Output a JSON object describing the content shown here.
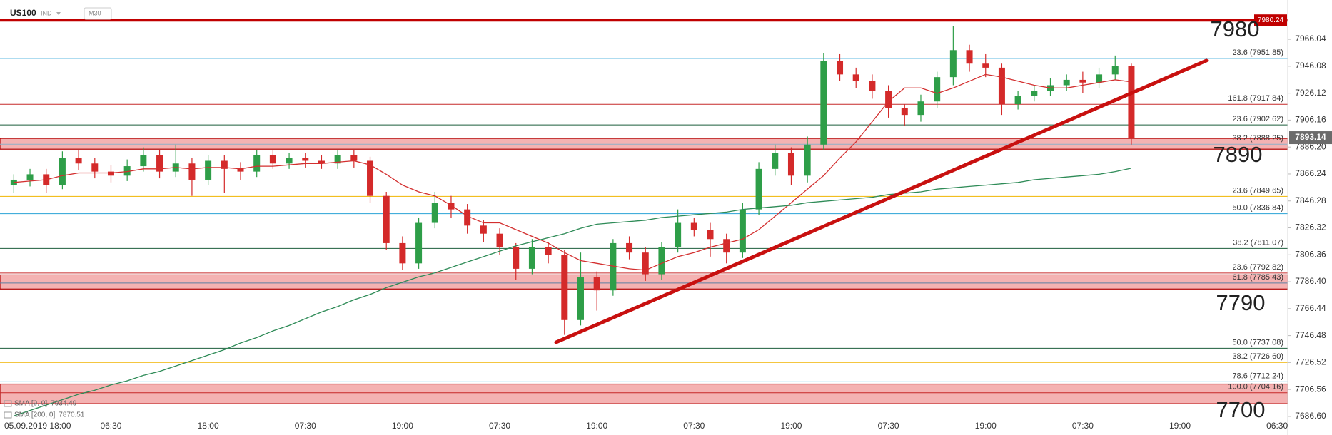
{
  "chart_data": {
    "type": "candlestick",
    "title": "US100",
    "market": "IND",
    "timeframe": "M30",
    "up_color": "#2e9e48",
    "down_color": "#d42a2a",
    "categories": [
      "05.09.2019 18:00",
      null,
      null,
      null,
      null,
      null,
      "06:30",
      null,
      null,
      null,
      null,
      null,
      "18:00",
      null,
      null,
      null,
      null,
      null,
      "07:30",
      null,
      null,
      null,
      null,
      null,
      "19:00",
      null,
      null,
      null,
      null,
      null,
      "07:30",
      null,
      null,
      null,
      null,
      null,
      "19:00",
      null,
      null,
      null,
      null,
      null,
      "07:30",
      null,
      null,
      null,
      null,
      null,
      "19:00",
      null,
      null,
      null,
      null,
      null,
      "07:30",
      null,
      null,
      null,
      null,
      null,
      "19:00",
      null,
      null,
      null,
      null,
      null,
      "07:30",
      null,
      null,
      null,
      null,
      null,
      "19:00",
      null,
      null,
      null,
      null,
      null,
      "06:30"
    ],
    "ohlc": {
      "open": [
        7858,
        7862,
        7866,
        7858,
        7878,
        7874,
        7868,
        7865,
        7872,
        7880,
        7868,
        7874,
        7862,
        7876,
        7870,
        7868,
        7880,
        7874,
        7878,
        7876,
        7874,
        7880,
        7876,
        7850,
        7815,
        7800,
        7830,
        7845,
        7840,
        7828,
        7822,
        7812,
        7796,
        7812,
        7806,
        7758,
        7790,
        7780,
        7815,
        7808,
        7792,
        7812,
        7830,
        7825,
        7818,
        7808,
        7840,
        7870,
        7882,
        7865,
        7888,
        7950,
        7940,
        7935,
        7928,
        7915,
        7910,
        7920,
        7938,
        7958,
        7948,
        7945,
        7918,
        7924,
        7928,
        7932,
        7936,
        7934,
        7940,
        7946,
        null,
        null,
        null,
        null,
        null,
        null,
        null,
        null,
        null
      ],
      "high": [
        7866,
        7870,
        7870,
        7883,
        7884,
        7878,
        7873,
        7877,
        7886,
        7884,
        7888,
        7878,
        7880,
        7880,
        7875,
        7884,
        7884,
        7882,
        7882,
        7880,
        7884,
        7884,
        7879,
        7853,
        7820,
        7834,
        7853,
        7850,
        7844,
        7832,
        7826,
        7815,
        7818,
        7816,
        7810,
        7808,
        7794,
        7818,
        7820,
        7812,
        7816,
        7840,
        7834,
        7830,
        7822,
        7845,
        7875,
        7888,
        7886,
        7894,
        7956,
        7955,
        7945,
        7940,
        7932,
        7918,
        7925,
        7942,
        7976,
        7962,
        7955,
        7948,
        7928,
        7932,
        7937,
        7940,
        7942,
        7945,
        7954,
        7948,
        null,
        null,
        null,
        null,
        null,
        null,
        null,
        null,
        null
      ],
      "low": [
        7852,
        7857,
        7852,
        7855,
        7869,
        7863,
        7860,
        7861,
        7868,
        7863,
        7864,
        7850,
        7858,
        7852,
        7862,
        7864,
        7870,
        7870,
        7871,
        7870,
        7870,
        7871,
        7845,
        7810,
        7795,
        7796,
        7826,
        7834,
        7822,
        7816,
        7806,
        7788,
        7792,
        7800,
        7747,
        7754,
        7765,
        7776,
        7803,
        7787,
        7788,
        7808,
        7820,
        7805,
        7800,
        7804,
        7836,
        7865,
        7858,
        7860,
        7884,
        7935,
        7930,
        7922,
        7908,
        7902,
        7905,
        7915,
        7932,
        7942,
        7938,
        7910,
        7914,
        7920,
        7924,
        7928,
        7926,
        7930,
        7936,
        7888,
        null,
        null,
        null,
        null,
        null,
        null,
        null,
        null,
        null
      ],
      "close": [
        7862,
        7866,
        7858,
        7878,
        7874,
        7868,
        7865,
        7872,
        7880,
        7868,
        7874,
        7862,
        7876,
        7870,
        7868,
        7880,
        7874,
        7878,
        7876,
        7874,
        7880,
        7876,
        7850,
        7815,
        7800,
        7830,
        7845,
        7840,
        7828,
        7822,
        7812,
        7796,
        7812,
        7806,
        7758,
        7790,
        7780,
        7815,
        7808,
        7792,
        7812,
        7830,
        7825,
        7818,
        7808,
        7840,
        7870,
        7882,
        7865,
        7888,
        7950,
        7940,
        7935,
        7928,
        7915,
        7910,
        7920,
        7938,
        7958,
        7948,
        7945,
        7918,
        7924,
        7928,
        7932,
        7936,
        7934,
        7940,
        7946,
        7893.14,
        null,
        null,
        null,
        null,
        null,
        null,
        null,
        null,
        null
      ]
    },
    "indicators": [
      {
        "name": "SMA [9, 0]",
        "color": "#d32f2f",
        "values": [
          7860,
          7861,
          7862,
          7865,
          7867,
          7867,
          7867,
          7868,
          7870,
          7870,
          7871,
          7870,
          7871,
          7871,
          7870,
          7872,
          7872,
          7873,
          7874,
          7874,
          7875,
          7876,
          7873,
          7866,
          7858,
          7853,
          7850,
          7843,
          7835,
          7830,
          7830,
          7825,
          7820,
          7815,
          7808,
          7802,
          7800,
          7798,
          7796,
          7795,
          7800,
          7805,
          7808,
          7812,
          7815,
          7818,
          7825,
          7835,
          7845,
          7855,
          7865,
          7878,
          7890,
          7905,
          7920,
          7930,
          7930,
          7926,
          7930,
          7935,
          7940,
          7938,
          7935,
          7932,
          7930,
          7930,
          7932,
          7934,
          7936,
          7934.49,
          null,
          null,
          null,
          null,
          null,
          null,
          null,
          null,
          null
        ]
      },
      {
        "name": "SMA [200, 0]",
        "color": "#2e8b57",
        "values": [
          7687,
          7691,
          7695,
          7699,
          7703,
          7706,
          7710,
          7713,
          7717,
          7720,
          7724,
          7728,
          7732,
          7736,
          7741,
          7745,
          7750,
          7754,
          7759,
          7764,
          7768,
          7773,
          7777,
          7782,
          7786,
          7790,
          7793,
          7797,
          7801,
          7805,
          7809,
          7813,
          7816,
          7819,
          7822,
          7826,
          7829,
          7830,
          7831,
          7832,
          7834,
          7835,
          7836,
          7837,
          7838,
          7840,
          7841,
          7842,
          7843,
          7845,
          7846,
          7847,
          7848,
          7849,
          7851,
          7852,
          7853,
          7855,
          7856,
          7857,
          7858,
          7859,
          7860,
          7862,
          7863,
          7864,
          7865,
          7866,
          7868,
          7870.51,
          null,
          null,
          null,
          null,
          null,
          null,
          null,
          null,
          null
        ]
      }
    ],
    "resistance": {
      "value": 7980.24,
      "color": "#c00000"
    },
    "zones": [
      {
        "range": [
          7884.6,
          7892.6
        ],
        "color": "#f2a5a5"
      },
      {
        "range": [
          7781,
          7791.5
        ],
        "color": "#f2a5a5"
      },
      {
        "range": [
          7696,
          7710.6
        ],
        "color": "#f2a5a5"
      }
    ],
    "levels": [
      {
        "value": 7951.85,
        "label": "23.6 (7951.85)",
        "color": "#29a3d6"
      },
      {
        "value": 7917.84,
        "label": "161.8 (7917.84)",
        "color": "#c62828"
      },
      {
        "value": 7902.62,
        "label": "23.6 (7902.62)",
        "color": "#1b5e3b"
      },
      {
        "value": 7888.25,
        "label": "38.2 (7888.25)",
        "color": "#8fb0c8"
      },
      {
        "value": 7849.65,
        "label": "23.6 (7849.65)",
        "color": "#f0b400"
      },
      {
        "value": 7836.84,
        "label": "50.0 (7836.84)",
        "color": "#29a3d6"
      },
      {
        "value": 7811.07,
        "label": "38.2 (7811.07)",
        "color": "#1b5e3b"
      },
      {
        "value": 7792.82,
        "label": "23.6 (7792.82)",
        "color": "#c62828"
      },
      {
        "value": 7785.43,
        "label": "61.8 (7785.43)",
        "color": "#5c7fa3"
      },
      {
        "value": 7737.08,
        "label": "50.0 (7737.08)",
        "color": "#1b5e3b"
      },
      {
        "value": 7726.6,
        "label": "38.2 (7726.60)",
        "color": "#f0b400"
      },
      {
        "value": 7712.24,
        "label": "78.6 (7712.24)",
        "color": "#29a3d6"
      },
      {
        "value": 7704.16,
        "label": "100.0 (7704.16)",
        "color": "#c62828"
      }
    ],
    "annotations": [
      "7980",
      "7890",
      "7790",
      "7700"
    ],
    "ylim": [
      7683.4,
      7988.8
    ],
    "yticks": [
      7966.04,
      7946.08,
      7926.12,
      7906.16,
      {
        "value": 7886.2,
        "label": "7886.20"
      },
      7866.24,
      7846.28,
      7826.32,
      7806.36,
      {
        "value": 7786.4,
        "label": "7786.40"
      },
      7766.44,
      7746.48,
      7726.52,
      7706.56,
      {
        "value": 7686.6,
        "label": "7686.60"
      }
    ]
  }
}
